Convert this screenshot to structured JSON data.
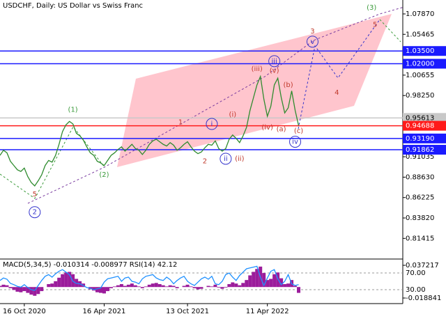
{
  "chart_data": [
    {
      "type": "line",
      "title": "USDCHF, Daily:  US Dollar vs Swiss Franc",
      "xlim": [
        0,
        116
      ],
      "ylim": [
        0.7898,
        1.0951
      ],
      "xticks": [
        {
          "value": 7,
          "label": "16 Oct 2020"
        },
        {
          "value": 30,
          "label": "16 Apr 2021"
        },
        {
          "value": 54,
          "label": "13 Oct 2021"
        },
        {
          "value": 77,
          "label": "11 Apr 2022"
        }
      ],
      "yticks": [
        {
          "value": 1.0787,
          "label": "1.07870"
        },
        {
          "value": 1.05465,
          "label": "1.05465"
        },
        {
          "value": 1.00655,
          "label": "1.00655"
        },
        {
          "value": 0.9825,
          "label": "0.98250"
        },
        {
          "value": 0.91035,
          "label": "0.91035"
        },
        {
          "value": 0.8863,
          "label": "0.88630"
        },
        {
          "value": 0.86225,
          "label": "0.86225"
        },
        {
          "value": 0.8382,
          "label": "0.83820"
        },
        {
          "value": 0.81415,
          "label": "0.81415"
        }
      ],
      "levels": [
        {
          "value": 1.035,
          "label": "1.03500",
          "color": "#1a1aff"
        },
        {
          "value": 1.02,
          "label": "1.02000",
          "color": "#1a1aff"
        },
        {
          "value": 0.95613,
          "label": "0.95613",
          "color": "#c8c8c8"
        },
        {
          "value": 0.94688,
          "label": "0.94688",
          "color": "#ff1a1a"
        },
        {
          "value": 0.9319,
          "label": "0.93190",
          "color": "#1a1aff"
        },
        {
          "value": 0.91862,
          "label": "0.91862",
          "color": "#1a1aff"
        }
      ],
      "series": [
        {
          "color": "#2e8b2e",
          "values": [
            0.912,
            0.918,
            0.915,
            0.905,
            0.9,
            0.895,
            0.893,
            0.897,
            0.887,
            0.88,
            0.876,
            0.882,
            0.889,
            0.9,
            0.906,
            0.904,
            0.912,
            0.925,
            0.94,
            0.948,
            0.952,
            0.949,
            0.938,
            0.935,
            0.93,
            0.922,
            0.915,
            0.912,
            0.905,
            0.903,
            0.9,
            0.906,
            0.912,
            0.915,
            0.919,
            0.922,
            0.917,
            0.921,
            0.925,
            0.92,
            0.918,
            0.913,
            0.918,
            0.925,
            0.929,
            0.931,
            0.928,
            0.925,
            0.923,
            0.927,
            0.924,
            0.918,
            0.921,
            0.925,
            0.928,
            0.922,
            0.917,
            0.914,
            0.916,
            0.921,
            0.925,
            0.924,
            0.929,
            0.92,
            0.917,
            0.92,
            0.931,
            0.936,
            0.932,
            0.927,
            0.935,
            0.945,
            0.965,
            0.98,
            0.995,
            1.005,
            0.978,
            0.958,
            0.97,
            0.995,
            1.003,
            0.98,
            0.962,
            0.968,
            0.988,
            0.965,
            0.947
          ]
        }
      ],
      "annotations": [
        {
          "text": "(1)",
          "x": 21,
          "y": 0.966,
          "color": "#3a9a3a",
          "circle": false
        },
        {
          "text": "(2)",
          "x": 30,
          "y": 0.889,
          "color": "#3a9a3a",
          "circle": false
        },
        {
          "text": "(3)",
          "x": 107,
          "y": 1.086,
          "color": "#3a9a3a",
          "circle": false
        },
        {
          "text": "5",
          "x": 10,
          "y": 0.866,
          "color": "#c0392b",
          "circle": false
        },
        {
          "text": "2",
          "x": 10,
          "y": 0.845,
          "color": "#3333cc",
          "circle": true
        },
        {
          "text": "1",
          "x": 52,
          "y": 0.951,
          "color": "#c0392b",
          "circle": false
        },
        {
          "text": "2",
          "x": 59,
          "y": 0.905,
          "color": "#c0392b",
          "circle": false
        },
        {
          "text": "i",
          "x": 61,
          "y": 0.949,
          "color": "#3333cc",
          "circle": true
        },
        {
          "text": "ii",
          "x": 65,
          "y": 0.908,
          "color": "#3333cc",
          "circle": true
        },
        {
          "text": "(i)",
          "x": 67,
          "y": 0.96,
          "color": "#c0392b",
          "circle": false
        },
        {
          "text": "(ii)",
          "x": 69,
          "y": 0.908,
          "color": "#c0392b",
          "circle": false
        },
        {
          "text": "(iii)",
          "x": 74,
          "y": 1.014,
          "color": "#c0392b",
          "circle": false
        },
        {
          "text": "(iv)",
          "x": 77,
          "y": 0.945,
          "color": "#c0392b",
          "circle": false
        },
        {
          "text": "(v)",
          "x": 79,
          "y": 1.012,
          "color": "#c0392b",
          "circle": false
        },
        {
          "text": "iii",
          "x": 79,
          "y": 1.023,
          "color": "#3333cc",
          "circle": true
        },
        {
          "text": "(b)",
          "x": 83,
          "y": 0.995,
          "color": "#c0392b",
          "circle": false
        },
        {
          "text": "(a)",
          "x": 81,
          "y": 0.943,
          "color": "#c0392b",
          "circle": false
        },
        {
          "text": "(c)",
          "x": 86,
          "y": 0.941,
          "color": "#c0392b",
          "circle": false
        },
        {
          "text": "iv",
          "x": 85,
          "y": 0.928,
          "color": "#3333cc",
          "circle": true
        },
        {
          "text": "v",
          "x": 90,
          "y": 1.046,
          "color": "#3333cc",
          "circle": true
        },
        {
          "text": "3",
          "x": 90,
          "y": 1.058,
          "color": "#c0392b",
          "circle": false
        },
        {
          "text": "4",
          "x": 97,
          "y": 0.986,
          "color": "#c0392b",
          "circle": false
        },
        {
          "text": "5",
          "x": 108,
          "y": 1.066,
          "color": "#c0392b",
          "circle": false
        }
      ]
    },
    {
      "type": "indicator",
      "title": "MACD(5,34,5) -0.010314 -0.008977 RSI(14) 42.12",
      "xlim": [
        0,
        116
      ],
      "ylim": [
        -0.026,
        0.0456
      ],
      "y2lim": [
        0,
        100
      ],
      "yticks": [
        {
          "value": 0.037217,
          "label": "0.037217"
        },
        {
          "value": -0.018841,
          "label": "-0.018841"
        }
      ],
      "y2ticks": [
        {
          "value": 70,
          "label": "70.00"
        },
        {
          "value": 30,
          "label": "30.00"
        }
      ],
      "series": [
        {
          "name": "MACD",
          "color": "#9b1c9b",
          "values": [
            0.002,
            0.004,
            0.003,
            -0.002,
            -0.005,
            -0.008,
            -0.009,
            -0.007,
            -0.01,
            -0.013,
            -0.015,
            -0.012,
            -0.007,
            0.0,
            0.005,
            0.006,
            0.01,
            0.016,
            0.022,
            0.025,
            0.026,
            0.022,
            0.014,
            0.01,
            0.006,
            0.0,
            -0.004,
            -0.006,
            -0.009,
            -0.01,
            -0.011,
            -0.007,
            -0.002,
            0.001,
            0.003,
            0.005,
            0.002,
            0.004,
            0.006,
            0.003,
            0.001,
            -0.002,
            0.001,
            0.004,
            0.006,
            0.007,
            0.005,
            0.003,
            0.001,
            0.003,
            0.002,
            -0.002,
            0.0,
            0.002,
            0.004,
            0.001,
            -0.002,
            -0.004,
            -0.003,
            0.0,
            0.002,
            0.001,
            0.004,
            -0.001,
            -0.003,
            -0.001,
            0.005,
            0.008,
            0.006,
            0.003,
            0.007,
            0.012,
            0.02,
            0.026,
            0.031,
            0.035,
            0.024,
            0.012,
            0.014,
            0.022,
            0.025,
            0.015,
            0.005,
            0.006,
            0.012,
            0.002,
            -0.01
          ]
        },
        {
          "name": "RSI",
          "color": "#1e90ff",
          "axis": "y2",
          "values": [
            52,
            58,
            55,
            45,
            42,
            38,
            36,
            42,
            35,
            30,
            28,
            40,
            52,
            62,
            66,
            60,
            68,
            74,
            78,
            72,
            66,
            50,
            45,
            44,
            40,
            35,
            33,
            30,
            32,
            34,
            48,
            56,
            58,
            60,
            62,
            50,
            58,
            60,
            50,
            48,
            44,
            56,
            62,
            64,
            66,
            58,
            54,
            52,
            60,
            54,
            44,
            52,
            58,
            62,
            50,
            44,
            40,
            48,
            56,
            60,
            55,
            62,
            44,
            42,
            50,
            66,
            70,
            60,
            52,
            64,
            72,
            80,
            82,
            84,
            86,
            60,
            40,
            58,
            74,
            78,
            56,
            42,
            50,
            66,
            44,
            40,
            42
          ]
        }
      ]
    }
  ]
}
